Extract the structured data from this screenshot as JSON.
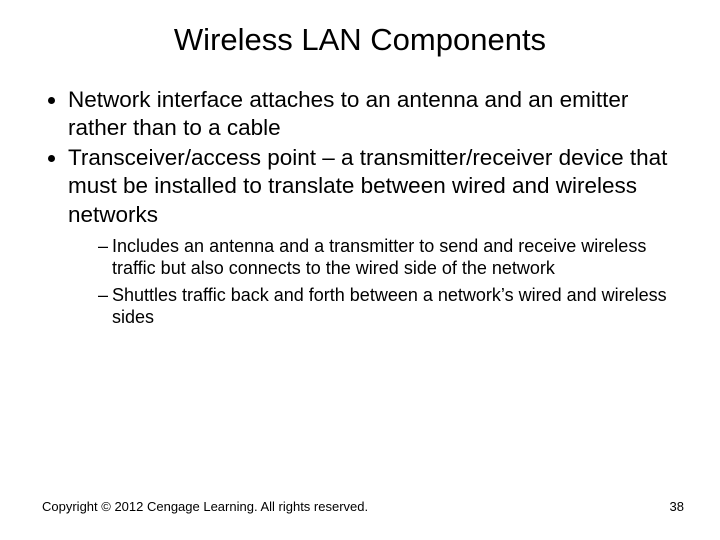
{
  "title": "Wireless LAN Components",
  "bullets": [
    "Network interface attaches to an antenna and an emitter rather than to a cable",
    "Transceiver/access point – a transmitter/receiver device that must be installed to translate between wired and wireless networks"
  ],
  "sub_bullets": [
    "Includes an antenna and a transmitter to send and receive wireless traffic but also connects to the wired side of the network",
    "Shuttles traffic back and forth between a network’s wired and wireless sides"
  ],
  "footer": {
    "copyright": "Copyright © 2012 Cengage Learning. All rights reserved.",
    "page_number": "38"
  },
  "styling": {
    "background_color": "#ffffff",
    "text_color": "#000000",
    "title_fontsize_pt": 31,
    "body_fontsize_pt": 22.5,
    "sub_fontsize_pt": 18,
    "footer_fontsize_pt": 13,
    "font_family": "Arial"
  }
}
